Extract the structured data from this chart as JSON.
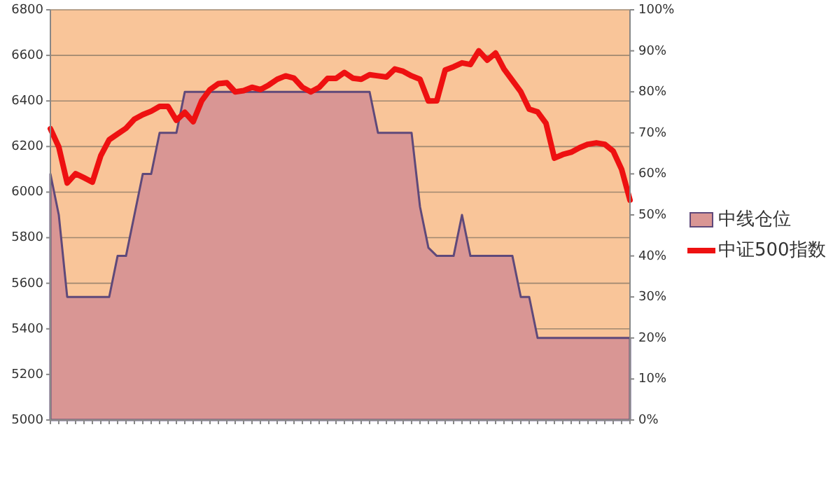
{
  "chart_data": {
    "type": "line",
    "categories": [
      null,
      null,
      null,
      null,
      null,
      null,
      null,
      null,
      null,
      null,
      null,
      null,
      null,
      null,
      null,
      null,
      null,
      null,
      null,
      null,
      null,
      null,
      null,
      null,
      null,
      null,
      null,
      null,
      null,
      null,
      null,
      null,
      null,
      null,
      null,
      null,
      null,
      null,
      null,
      null,
      null,
      null,
      null,
      null,
      null,
      null,
      null,
      null,
      null,
      null,
      null,
      null,
      null,
      null,
      null,
      null,
      null,
      null,
      null,
      null,
      null,
      null,
      null,
      null,
      null,
      null,
      null,
      null,
      null,
      null
    ],
    "series": [
      {
        "name": "中线仓位",
        "type": "area",
        "axis": "y2",
        "color": "#d99694",
        "values": [
          60,
          50,
          30,
          30,
          30,
          30,
          30,
          30,
          40,
          40,
          50,
          60,
          60,
          70,
          70,
          70,
          80,
          80,
          80,
          80,
          80,
          80,
          80,
          80,
          80,
          80,
          80,
          80,
          80,
          80,
          80,
          80,
          80,
          80,
          80,
          80,
          80,
          80,
          80,
          70,
          70,
          70,
          70,
          70,
          52,
          42,
          40,
          40,
          40,
          50,
          40,
          40,
          40,
          40,
          40,
          40,
          30,
          30,
          20,
          20,
          20,
          20,
          20,
          20,
          20,
          20,
          20,
          20,
          20,
          20
        ]
      },
      {
        "name": "中证500指数",
        "color": "#ee1111",
        "values": [
          6278,
          6198,
          6040,
          6081,
          6063,
          6044,
          6160,
          6230,
          6255,
          6280,
          6320,
          6340,
          6355,
          6376,
          6376,
          6315,
          6350,
          6309,
          6400,
          6450,
          6476,
          6480,
          6440,
          6445,
          6460,
          6450,
          6470,
          6495,
          6510,
          6500,
          6460,
          6440,
          6460,
          6499,
          6499,
          6525,
          6500,
          6495,
          6515,
          6510,
          6505,
          6540,
          6530,
          6510,
          6495,
          6400,
          6401,
          6536,
          6550,
          6567,
          6560,
          6620,
          6579,
          6610,
          6540,
          6490,
          6440,
          6364,
          6352,
          6302,
          6149,
          6165,
          6175,
          6195,
          6210,
          6216,
          6210,
          6180,
          6100,
          5965
        ]
      }
    ],
    "ylim": [
      5000,
      6800
    ],
    "yticks": [
      5000,
      5200,
      5400,
      5600,
      5800,
      6000,
      6200,
      6400,
      6600,
      6800
    ],
    "y2lim": [
      0,
      100
    ],
    "y2ticks": [
      {
        "value": 0,
        "label": "0%"
      },
      {
        "value": 10,
        "label": "10%"
      },
      {
        "value": 20,
        "label": "20%"
      },
      {
        "value": 30,
        "label": "30%"
      },
      {
        "value": 40,
        "label": "40%"
      },
      {
        "value": 50,
        "label": "50%"
      },
      {
        "value": 60,
        "label": "60%"
      },
      {
        "value": 70,
        "label": "70%"
      },
      {
        "value": 80,
        "label": "80%"
      },
      {
        "value": 90,
        "label": "90%"
      },
      {
        "value": 100,
        "label": "100%"
      }
    ],
    "grid": "y",
    "legend": "right"
  }
}
